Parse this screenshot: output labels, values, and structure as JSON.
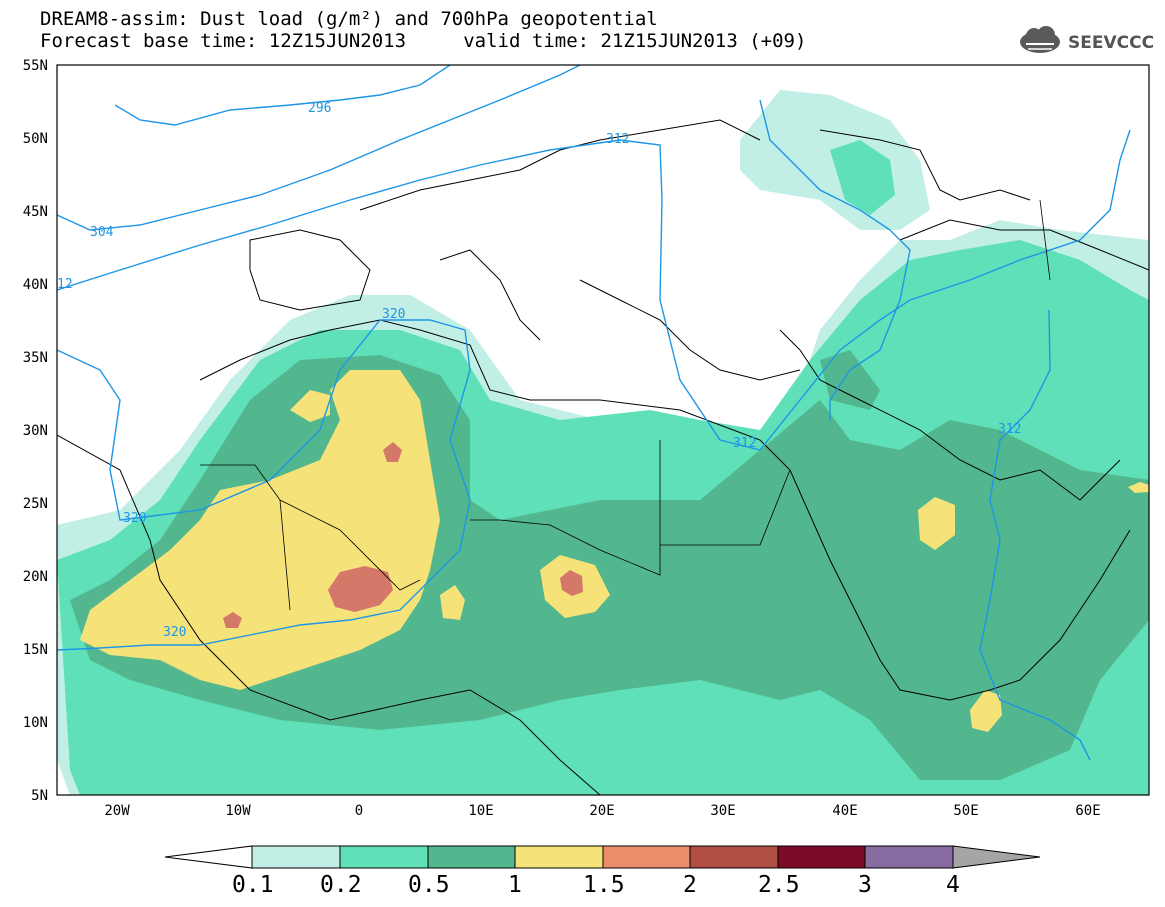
{
  "header": {
    "line1": "DREAM8-assim: Dust load (g/m²) and 700hPa geopotential",
    "line2": "Forecast base time: 12Z15JUN2013     valid time: 21Z15JUN2013 (+09)",
    "logo": "SEEVCCC"
  },
  "axes": {
    "lat_labels": [
      "55N",
      "50N",
      "45N",
      "40N",
      "35N",
      "30N",
      "25N",
      "20N",
      "15N",
      "10N",
      "5N"
    ],
    "lon_labels": [
      "20W",
      "10W",
      "0",
      "10E",
      "20E",
      "30E",
      "40E",
      "50E",
      "60E"
    ]
  },
  "contour_labels": [
    "296",
    "312",
    "304",
    "12",
    "320",
    "320",
    "320",
    "312",
    "312"
  ],
  "colorbar": {
    "labels": [
      "0.1",
      "0.2",
      "0.5",
      "1",
      "1.5",
      "2",
      "2.5",
      "3",
      "4"
    ],
    "colors": [
      "#ffffff",
      "#c1efe6",
      "#5fe0b9",
      "#52b78e",
      "#f5e37a",
      "#ec8e6c",
      "#b14e42",
      "#7c0b2a",
      "#876ba1",
      "#a5a5a5"
    ]
  },
  "dust_colors": {
    "level_0_1": "#c1efe6",
    "level_0_2": "#5fe0b9",
    "level_0_5": "#52b78e",
    "level_1": "#f5e37a",
    "level_1_5": "#ec8e6c",
    "level_2": "#d4786a"
  },
  "contour_color": "#1e96e6"
}
